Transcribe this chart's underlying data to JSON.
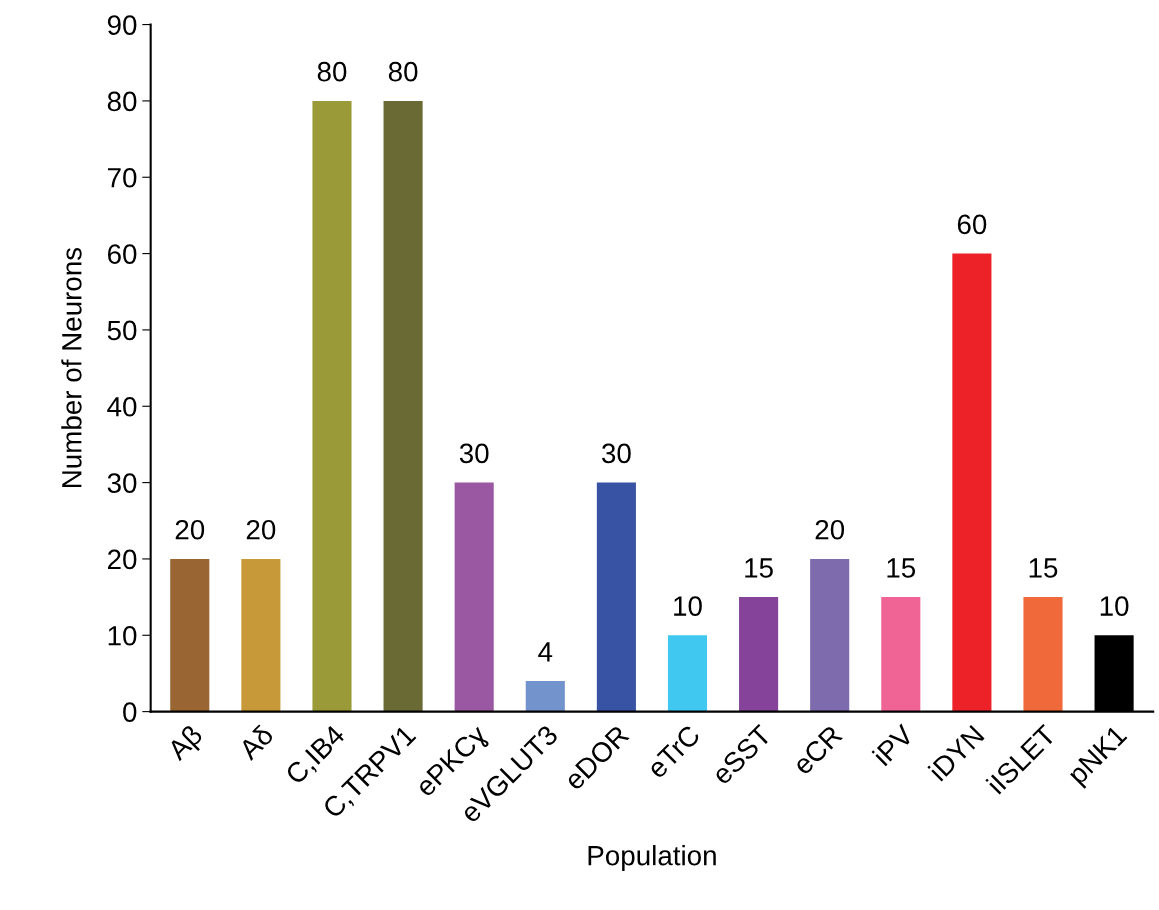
{
  "chart_data": {
    "type": "bar",
    "xlabel": "Population",
    "ylabel": "Number of Neurons",
    "categories": [
      "Aβ",
      "Aδ",
      "C,IB4",
      "C,TRPV1",
      "ePKCɣ",
      "eVGLUT3",
      "eDOR",
      "eTrC",
      "eSST",
      "eCR",
      "iPV",
      "iDYN",
      "iISLET",
      "pNK1"
    ],
    "values": [
      20,
      20,
      80,
      80,
      30,
      4,
      30,
      10,
      15,
      20,
      15,
      60,
      15,
      10
    ],
    "colors": [
      "#996633",
      "#c89938",
      "#9a9a38",
      "#6a6a35",
      "#9a58a2",
      "#7293cb",
      "#3953a4",
      "#40c8f0",
      "#854499",
      "#7e6bae",
      "#f06495",
      "#ec2228",
      "#f0693b",
      "#000000"
    ],
    "ylim": [
      0,
      90
    ],
    "yticks": [
      0,
      10,
      20,
      30,
      40,
      50,
      60,
      70,
      80,
      90
    ],
    "data_labels": true,
    "grid": false,
    "legend": false
  }
}
